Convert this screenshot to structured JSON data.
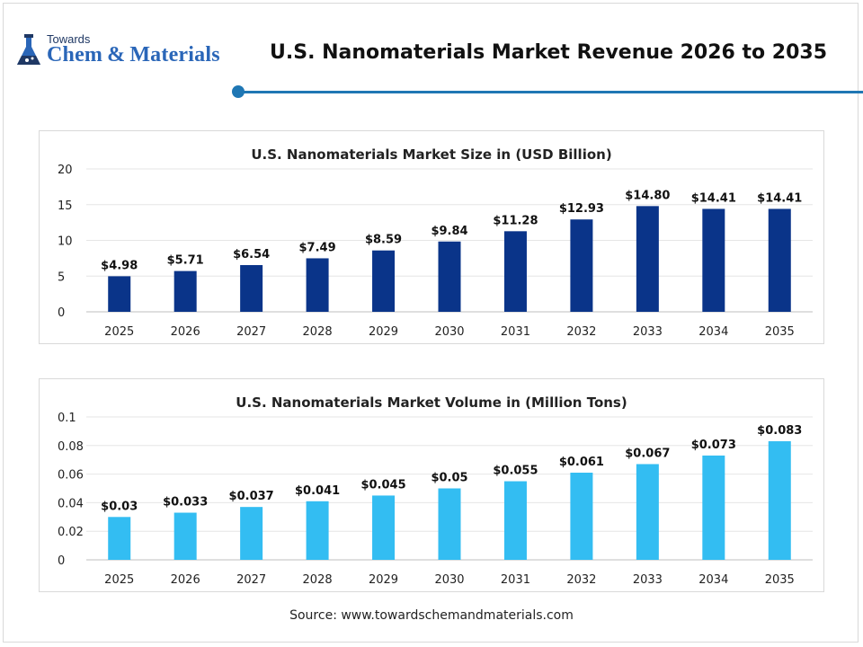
{
  "header": {
    "logo_small": "Towards",
    "logo_big": "Chem & Materials",
    "title": "U.S. Nanomaterials Market Revenue 2026 to 2035"
  },
  "colors": {
    "accent": "#1f77b4",
    "bar_size": "#0a3489",
    "bar_volume": "#33bdf2"
  },
  "chart_data": [
    {
      "type": "bar",
      "title": "U.S. Nanomaterials Market Size in (USD Billion)",
      "categories": [
        "2025",
        "2026",
        "2027",
        "2028",
        "2029",
        "2030",
        "2031",
        "2032",
        "2033",
        "2034",
        "2035"
      ],
      "values": [
        4.98,
        5.71,
        6.54,
        7.49,
        8.59,
        9.84,
        11.28,
        12.93,
        14.8,
        14.41,
        14.41
      ],
      "data_labels": [
        "$4.98",
        "$5.71",
        "$6.54",
        "$7.49",
        "$8.59",
        "$9.84",
        "$11.28",
        "$12.93",
        "$14.80",
        "$14.41",
        "$14.41"
      ],
      "ylim": [
        0,
        20
      ],
      "yticks": [
        "0",
        "5",
        "10",
        "15",
        "20"
      ],
      "ytick_values": [
        0,
        5,
        10,
        15,
        20
      ],
      "color": "#0a3489",
      "grid": true,
      "legend": "none"
    },
    {
      "type": "bar",
      "title": "U.S. Nanomaterials Market Volume in (Million Tons)",
      "categories": [
        "2025",
        "2026",
        "2027",
        "2028",
        "2029",
        "2030",
        "2031",
        "2032",
        "2033",
        "2034",
        "2035"
      ],
      "values": [
        0.03,
        0.033,
        0.037,
        0.041,
        0.045,
        0.05,
        0.055,
        0.061,
        0.067,
        0.073,
        0.083
      ],
      "data_labels": [
        "$0.03",
        "$0.033",
        "$0.037",
        "$0.041",
        "$0.045",
        "$0.05",
        "$0.055",
        "$0.061",
        "$0.067",
        "$0.073",
        "$0.083"
      ],
      "ylim": [
        0,
        0.1
      ],
      "yticks": [
        "0",
        "0.02",
        "0.04",
        "0.06",
        "0.08",
        "0.1"
      ],
      "ytick_values": [
        0,
        0.02,
        0.04,
        0.06,
        0.08,
        0.1
      ],
      "color": "#33bdf2",
      "grid": true,
      "legend": "none"
    }
  ],
  "footer": {
    "source": "Source: www.towardschemandmaterials.com"
  }
}
